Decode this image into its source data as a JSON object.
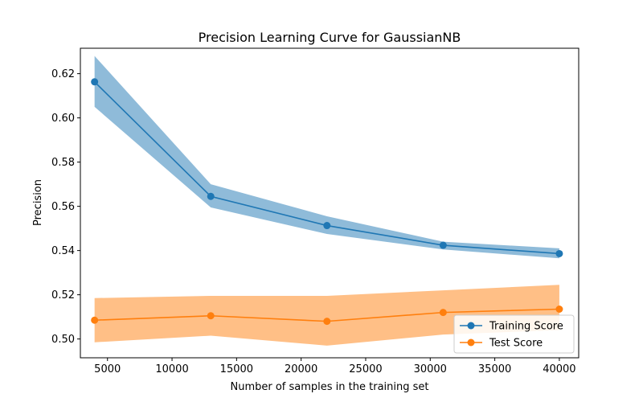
{
  "chart_data": {
    "type": "line",
    "title": "Precision Learning Curve for GaussianNB",
    "xlabel": "Number of samples in the training set",
    "ylabel": "Precision",
    "x": [
      4000,
      13000,
      22000,
      31000,
      40000
    ],
    "xlim": [
      2900,
      41500
    ],
    "ylim": [
      0.4915,
      0.6315
    ],
    "xticks": [
      5000,
      10000,
      15000,
      20000,
      25000,
      30000,
      35000,
      40000
    ],
    "yticks": [
      0.5,
      0.52,
      0.54,
      0.56,
      0.58,
      0.6,
      0.62
    ],
    "ytick_labels": [
      "0.50",
      "0.52",
      "0.54",
      "0.56",
      "0.58",
      "0.60",
      "0.62"
    ],
    "grid": false,
    "legend_position": "lower-right",
    "series": [
      {
        "name": "Training Score",
        "color": "#1f77b4",
        "band_color": "#1f77b4",
        "marker": "circle",
        "values": [
          0.6163,
          0.5645,
          0.5513,
          0.5424,
          0.5386
        ],
        "lower": [
          0.605,
          0.5595,
          0.5475,
          0.5405,
          0.5365
        ],
        "upper": [
          0.628,
          0.57,
          0.5555,
          0.544,
          0.541
        ]
      },
      {
        "name": "Test Score",
        "color": "#ff7f0e",
        "band_color": "#ff7f0e",
        "marker": "circle",
        "values": [
          0.5085,
          0.5105,
          0.508,
          0.512,
          0.5135
        ],
        "lower": [
          0.4985,
          0.5015,
          0.497,
          0.502,
          0.504
        ],
        "upper": [
          0.5185,
          0.5195,
          0.5195,
          0.522,
          0.5245
        ]
      }
    ]
  }
}
